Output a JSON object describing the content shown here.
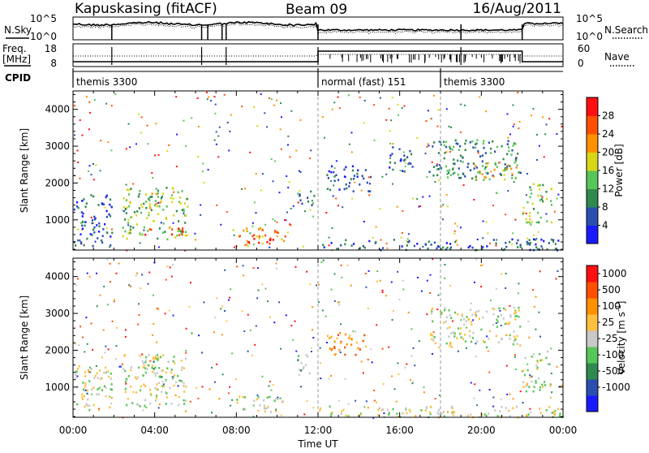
{
  "header": {
    "station": "Kapuskasing (fitACF)",
    "beam": "Beam 09",
    "date": "16/Aug/2011"
  },
  "noise_panel": {
    "left_label": "N.Sky",
    "right_label": "N.Search",
    "left_ticks": [
      "10^5",
      "10^0"
    ],
    "right_ticks": [
      "10^5",
      "10^0"
    ]
  },
  "freq_panel": {
    "left_label_line1": "Freq.",
    "left_label_line2": "[MHz]",
    "right_label": "Nave",
    "left_ticks": [
      "18",
      "8"
    ],
    "right_ticks": [
      "60",
      "0"
    ]
  },
  "cpid": {
    "label": "CPID",
    "segments": [
      {
        "name": "themis 3300",
        "start_hour": 0
      },
      {
        "name": "normal (fast) 151",
        "start_hour": 12
      },
      {
        "name": "themis 3300",
        "start_hour": 18
      }
    ]
  },
  "colors": {
    "power_scale": [
      "#1a1aff",
      "#2a4faf",
      "#2e8a4e",
      "#58c658",
      "#d7d717",
      "#ff9000",
      "#ff5000",
      "#ff1010"
    ],
    "velocity_scale": [
      "#ff1010",
      "#ff5000",
      "#ff9000",
      "#ffc040",
      "#c8c8c8",
      "#58c658",
      "#2e8a4e",
      "#2a4faf",
      "#1a1aff"
    ],
    "ground_scatter": "#c8c8c8"
  },
  "chart_data": [
    {
      "type": "heatmap",
      "name_printed": "",
      "ylabel": "Slant Range [km]",
      "xlabel": "",
      "ylim": [
        180,
        4500
      ],
      "xlim": [
        0,
        24
      ],
      "y_ticks": [
        "1000",
        "2000",
        "3000",
        "4000"
      ],
      "x_ticks": [],
      "colorbar_label": "Power [dB]",
      "colorbar_ticks": [
        "4",
        "8",
        "12",
        "16",
        "20",
        "24",
        "28"
      ],
      "regions": [
        {
          "t0": 0.0,
          "t1": 1.9,
          "r0": 300,
          "r1": 1700,
          "level": 1
        },
        {
          "t0": 2.4,
          "t1": 5.6,
          "r0": 500,
          "r1": 1900,
          "level": 3
        },
        {
          "t0": 3.5,
          "t1": 4.4,
          "r0": 1300,
          "r1": 1750,
          "level": 4
        },
        {
          "t0": 3.2,
          "t1": 5.4,
          "r0": 600,
          "r1": 800,
          "level": 7
        },
        {
          "t0": 7.8,
          "t1": 10.4,
          "r0": 350,
          "r1": 800,
          "level": 5
        },
        {
          "t0": 8.4,
          "t1": 9.8,
          "r0": 400,
          "r1": 620,
          "level": 7
        },
        {
          "t0": 10.9,
          "t1": 11.8,
          "r0": 1400,
          "r1": 1900,
          "level": 2
        },
        {
          "t0": 12.0,
          "t1": 24.0,
          "r0": 200,
          "r1": 500,
          "level": 1
        },
        {
          "t0": 12.4,
          "t1": 14.6,
          "r0": 1800,
          "r1": 2500,
          "level": 1
        },
        {
          "t0": 15.4,
          "t1": 16.6,
          "r0": 2300,
          "r1": 3000,
          "level": 1
        },
        {
          "t0": 17.4,
          "t1": 21.9,
          "r0": 2100,
          "r1": 3200,
          "level": 2
        },
        {
          "t0": 19.6,
          "t1": 21.8,
          "r0": 2100,
          "r1": 2600,
          "level": 4
        },
        {
          "t0": 22.0,
          "t1": 23.4,
          "r0": 900,
          "r1": 2000,
          "level": 3
        }
      ]
    },
    {
      "type": "heatmap",
      "name_printed": "",
      "ylabel": "Slant Range [km]",
      "xlabel": "Time UT",
      "ylim": [
        180,
        4500
      ],
      "xlim": [
        0,
        24
      ],
      "y_ticks": [
        "1000",
        "2000",
        "3000",
        "4000"
      ],
      "x_ticks": [
        "00:00",
        "04:00",
        "08:00",
        "12:00",
        "16:00",
        "20:00",
        "00:00"
      ],
      "colorbar_label": "Velocity [m s^-1]",
      "colorbar_ticks": [
        "1000",
        "500",
        "100",
        "25",
        "-25",
        "-100",
        "-500",
        "-1000"
      ],
      "regions": [
        {
          "t0": 0.0,
          "t1": 1.9,
          "r0": 400,
          "r1": 1600,
          "level": 4
        },
        {
          "t0": 2.4,
          "t1": 5.6,
          "r0": 500,
          "r1": 1900,
          "level": 4
        },
        {
          "t0": 3.5,
          "t1": 4.4,
          "r0": 1300,
          "r1": 1800,
          "level": 5
        },
        {
          "t0": 7.8,
          "t1": 10.4,
          "r0": 350,
          "r1": 800,
          "level": 4
        },
        {
          "t0": 10.9,
          "t1": 11.8,
          "r0": 1400,
          "r1": 1900,
          "level": 5
        },
        {
          "t0": 12.0,
          "t1": 24.0,
          "r0": 200,
          "r1": 500,
          "level": 4
        },
        {
          "t0": 12.4,
          "t1": 14.4,
          "r0": 1900,
          "r1": 2500,
          "level": 2
        },
        {
          "t0": 17.4,
          "t1": 21.9,
          "r0": 2100,
          "r1": 3200,
          "level": 4
        },
        {
          "t0": 22.0,
          "t1": 23.4,
          "r0": 900,
          "r1": 2000,
          "level": 4
        }
      ]
    }
  ]
}
